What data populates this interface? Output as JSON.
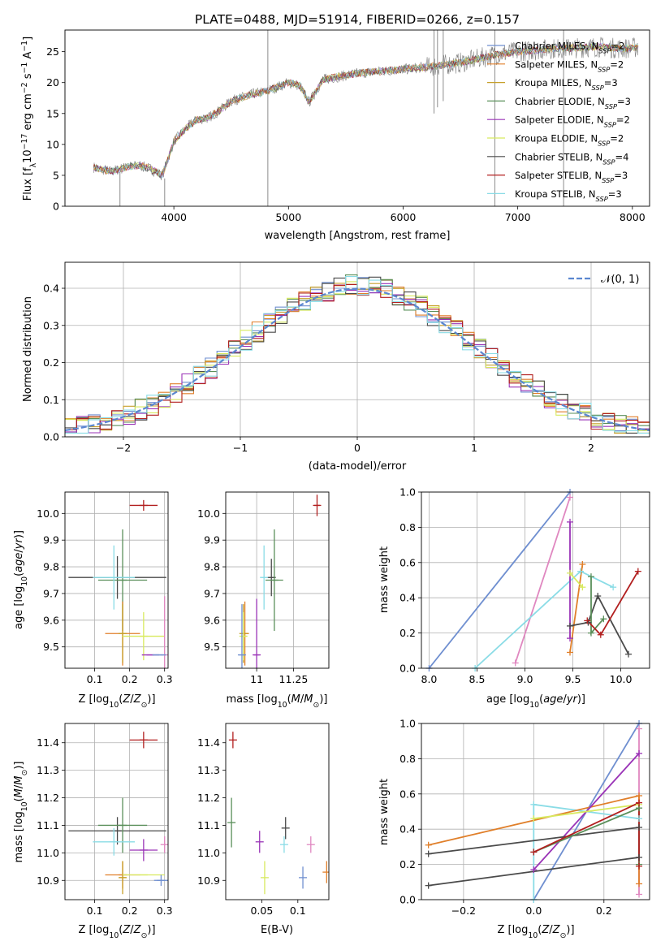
{
  "chart_data": [
    {
      "id": "spectrum",
      "type": "line",
      "title": "PLATE=0488, MJD=51914, FIBERID=0266, z=0.157",
      "xlabel": "wavelength [Angstrom, rest frame]",
      "ylabel": "Flux [f_λ 10⁻¹⁷ erg cm⁻² s⁻¹ A⁻¹]",
      "xlim": [
        3050,
        8150
      ],
      "ylim": [
        0,
        28.5
      ],
      "xticks": [
        4000,
        5000,
        6000,
        7000,
        8000
      ],
      "yticks": [
        0,
        5,
        10,
        15,
        20,
        25
      ],
      "legend_position": "upper right",
      "series": [
        {
          "name": "Chabrier MILES, N_SSP=2",
          "color": "#6f8fd0"
        },
        {
          "name": "Salpeter MILES, N_SSP=2",
          "color": "#e07f2a"
        },
        {
          "name": "Kroupa MILES, N_SSP=3",
          "color": "#c7a02b"
        },
        {
          "name": "Chabrier ELODIE, N_SSP=3",
          "color": "#5a8f5a"
        },
        {
          "name": "Salpeter ELODIE, N_SSP=2",
          "color": "#9a33b7"
        },
        {
          "name": "Kroupa ELODIE, N_SSP=2",
          "color": "#d8ea5e"
        },
        {
          "name": "Chabrier STELIB, N_SSP=4",
          "color": "#4a4a4a"
        },
        {
          "name": "Salpeter STELIB, N_SSP=3",
          "color": "#b21f1f"
        },
        {
          "name": "Kroupa STELIB, N_SSP=3",
          "color": "#8adce6"
        }
      ],
      "continuum": [
        [
          3300,
          6.3
        ],
        [
          3450,
          5.6
        ],
        [
          3600,
          6.4
        ],
        [
          3700,
          6.6
        ],
        [
          3800,
          6.0
        ],
        [
          3900,
          5.0
        ],
        [
          4000,
          10.5
        ],
        [
          4100,
          12.5
        ],
        [
          4200,
          14.0
        ],
        [
          4300,
          14.3
        ],
        [
          4400,
          15.5
        ],
        [
          4500,
          17.0
        ],
        [
          4700,
          18.2
        ],
        [
          4800,
          18.5
        ],
        [
          5000,
          20.0
        ],
        [
          5100,
          19.5
        ],
        [
          5180,
          16.8
        ],
        [
          5300,
          20.5
        ],
        [
          5600,
          21.5
        ],
        [
          5900,
          22.0
        ],
        [
          6200,
          22.5
        ],
        [
          6500,
          23.2
        ],
        [
          6800,
          24.5
        ],
        [
          7000,
          25.0
        ],
        [
          7300,
          25.5
        ],
        [
          7500,
          25.6
        ],
        [
          7700,
          25.8
        ],
        [
          7900,
          25.5
        ],
        [
          8050,
          25.7
        ]
      ],
      "spikes": [
        {
          "x": 3530,
          "y0": 0,
          "y1": 5.5
        },
        {
          "x": 3920,
          "y0": 0,
          "y1": 4.5
        },
        {
          "x": 4820,
          "y0": 0,
          "y1": 28.5
        },
        {
          "x": 6800,
          "y0": 0,
          "y1": 28.5
        },
        {
          "x": 7400,
          "y0": 0,
          "y1": 28.5
        },
        {
          "x": 6270,
          "y0": 15,
          "y1": 28.5
        },
        {
          "x": 6350,
          "y0": 17,
          "y1": 28.5
        },
        {
          "x": 6300,
          "y0": 16,
          "y1": 28.5
        }
      ]
    },
    {
      "id": "residuals",
      "type": "line",
      "xlabel": "(data-model)/error",
      "ylabel": "Normed distribution",
      "xlim": [
        -2.5,
        2.5
      ],
      "ylim": [
        0,
        0.47
      ],
      "xticks": [
        -2,
        -1,
        0,
        1,
        2
      ],
      "yticks": [
        0.0,
        0.1,
        0.2,
        0.3,
        0.4
      ],
      "grid": true,
      "legend_position": "upper right",
      "reference_curve": {
        "name": "𝒩(0, 1)",
        "mean": 0,
        "sigma": 1,
        "color": "#5b87d0"
      },
      "bin_width": 0.1
    },
    {
      "id": "age_vs_Z",
      "type": "scatter",
      "xlabel": "Z [log10(Z/Z⊙)]",
      "ylabel": "age  [log10(age/yr)]",
      "xlim": [
        0.015,
        0.31
      ],
      "ylim": [
        9.42,
        10.08
      ],
      "xticks": [
        0.1,
        0.2,
        0.3
      ],
      "yticks": [
        9.5,
        9.6,
        9.7,
        9.8,
        9.9,
        10.0
      ],
      "grid": true,
      "points": [
        {
          "x": 0.24,
          "y": 10.03,
          "xerr": 0.04,
          "yerr": 0.02,
          "color": "#b21f1f"
        },
        {
          "x": 0.165,
          "y": 9.76,
          "xerr": 0.14,
          "yerr": 0.08,
          "color": "#4a4a4a"
        },
        {
          "x": 0.18,
          "y": 9.75,
          "xerr": 0.07,
          "yerr": 0.19,
          "color": "#5a8f5a"
        },
        {
          "x": 0.155,
          "y": 9.76,
          "xerr": 0.06,
          "yerr": 0.12,
          "color": "#8adce6"
        },
        {
          "x": 0.18,
          "y": 9.55,
          "xerr": 0.05,
          "yerr": 0.12,
          "color": "#e07f2a"
        },
        {
          "x": 0.18,
          "y": 9.55,
          "xerr": 0.01,
          "yerr": 0.11,
          "color": "#c7a02b"
        },
        {
          "x": 0.24,
          "y": 9.54,
          "xerr": 0.06,
          "yerr": 0.09,
          "color": "#d8ea5e"
        },
        {
          "x": 0.26,
          "y": 9.47,
          "xerr": 0.025,
          "yerr": 0.0,
          "color": "#9a33b7"
        },
        {
          "x": 0.3,
          "y": 9.47,
          "xerr": 0.0,
          "yerr": 0.22,
          "color": "#e087c0"
        },
        {
          "x": 0.285,
          "y": 9.47,
          "xerr": 0.02,
          "yerr": 0.0,
          "color": "#6f8fd0"
        }
      ]
    },
    {
      "id": "age_vs_mass",
      "type": "scatter",
      "xlabel": "mass [log10(M/M⊙)]",
      "ylabel": "",
      "xlim": [
        10.79,
        11.49
      ],
      "ylim": [
        9.42,
        10.08
      ],
      "xticks": [
        11.0,
        11.25
      ],
      "yticks": [
        9.5,
        9.6,
        9.7,
        9.8,
        9.9,
        10.0
      ],
      "grid": true,
      "points": [
        {
          "x": 11.41,
          "y": 10.03,
          "xerr": 0.02,
          "yerr": 0.04,
          "color": "#b21f1f"
        },
        {
          "x": 11.1,
          "y": 9.76,
          "xerr": 0.03,
          "yerr": 0.07,
          "color": "#4a4a4a"
        },
        {
          "x": 11.12,
          "y": 9.75,
          "xerr": 0.06,
          "yerr": 0.19,
          "color": "#5a8f5a"
        },
        {
          "x": 11.05,
          "y": 9.76,
          "xerr": 0.02,
          "yerr": 0.12,
          "color": "#8adce6"
        },
        {
          "x": 10.92,
          "y": 9.55,
          "xerr": 0.02,
          "yerr": 0.12,
          "color": "#e07f2a"
        },
        {
          "x": 10.91,
          "y": 9.55,
          "xerr": 0.0,
          "yerr": 0.11,
          "color": "#c7a02b"
        },
        {
          "x": 10.91,
          "y": 9.54,
          "xerr": 0.02,
          "yerr": 0.09,
          "color": "#d8ea5e"
        },
        {
          "x": 11.0,
          "y": 9.47,
          "xerr": 0.02,
          "yerr": 0.21,
          "color": "#9a33b7"
        },
        {
          "x": 10.9,
          "y": 9.47,
          "xerr": 0.02,
          "yerr": 0.19,
          "color": "#6f8fd0"
        }
      ]
    },
    {
      "id": "weight_vs_age",
      "type": "line",
      "xlabel": "age  [log10(age/yr)]",
      "ylabel": "mass weight",
      "xlim": [
        7.92,
        10.3
      ],
      "ylim": [
        0,
        1
      ],
      "xticks": [
        8.0,
        8.5,
        9.0,
        9.5,
        10.0
      ],
      "yticks": [
        0.0,
        0.2,
        0.4,
        0.6,
        0.8,
        1.0
      ],
      "grid": true,
      "series": [
        {
          "color": "#6f8fd0",
          "points": [
            [
              8.0,
              0.0
            ],
            [
              9.47,
              1.0
            ]
          ]
        },
        {
          "color": "#e087c0",
          "points": [
            [
              8.9,
              0.03
            ],
            [
              9.47,
              0.97
            ]
          ]
        },
        {
          "color": "#8adce6",
          "points": [
            [
              8.48,
              0.0
            ],
            [
              9.58,
              0.55
            ],
            [
              9.92,
              0.46
            ]
          ]
        },
        {
          "color": "#e07f2a",
          "points": [
            [
              9.47,
              0.09
            ],
            [
              9.6,
              0.59
            ]
          ]
        },
        {
          "color": "#9a33b7",
          "points": [
            [
              9.47,
              0.17
            ],
            [
              9.47,
              0.83
            ]
          ]
        },
        {
          "color": "#d8ea5e",
          "points": [
            [
              9.47,
              0.54
            ],
            [
              9.6,
              0.46
            ]
          ]
        },
        {
          "color": "#4a4a4a",
          "points": [
            [
              9.47,
              0.24
            ],
            [
              9.66,
              0.26
            ],
            [
              9.76,
              0.41
            ],
            [
              10.08,
              0.08
            ]
          ]
        },
        {
          "color": "#5a8f5a",
          "points": [
            [
              9.69,
              0.52
            ],
            [
              9.69,
              0.2
            ],
            [
              9.82,
              0.28
            ]
          ]
        },
        {
          "color": "#b21f1f",
          "points": [
            [
              9.65,
              0.27
            ],
            [
              9.79,
              0.19
            ],
            [
              10.18,
              0.55
            ]
          ]
        }
      ]
    },
    {
      "id": "mass_vs_Z",
      "type": "scatter",
      "xlabel": "Z [log10(Z/Z⊙)]",
      "ylabel": "mass [log10(M/M⊙)]",
      "xlim": [
        0.015,
        0.31
      ],
      "ylim": [
        10.83,
        11.47
      ],
      "xticks": [
        0.1,
        0.2,
        0.3
      ],
      "yticks": [
        10.9,
        11.0,
        11.1,
        11.2,
        11.3,
        11.4
      ],
      "grid": true,
      "points": [
        {
          "x": 0.24,
          "y": 11.41,
          "xerr": 0.04,
          "yerr": 0.03,
          "color": "#b21f1f"
        },
        {
          "x": 0.165,
          "y": 11.08,
          "xerr": 0.14,
          "yerr": 0.05,
          "color": "#4a4a4a"
        },
        {
          "x": 0.18,
          "y": 11.1,
          "xerr": 0.07,
          "yerr": 0.1,
          "color": "#5a8f5a"
        },
        {
          "x": 0.155,
          "y": 11.04,
          "xerr": 0.06,
          "yerr": 0.05,
          "color": "#8adce6"
        },
        {
          "x": 0.24,
          "y": 11.01,
          "xerr": 0.04,
          "yerr": 0.04,
          "color": "#9a33b7"
        },
        {
          "x": 0.18,
          "y": 10.92,
          "xerr": 0.05,
          "yerr": 0.05,
          "color": "#e07f2a"
        },
        {
          "x": 0.18,
          "y": 10.91,
          "xerr": 0.01,
          "yerr": 0.06,
          "color": "#c7a02b"
        },
        {
          "x": 0.24,
          "y": 10.92,
          "xerr": 0.06,
          "yerr": 0.0,
          "color": "#d8ea5e"
        },
        {
          "x": 0.29,
          "y": 10.9,
          "xerr": 0.02,
          "yerr": 0.02,
          "color": "#6f8fd0"
        },
        {
          "x": 0.3,
          "y": 11.03,
          "xerr": 0.0,
          "yerr": 0.03,
          "color": "#e087c0"
        }
      ]
    },
    {
      "id": "mass_vs_EBV",
      "type": "scatter",
      "xlabel": "E(B-V)",
      "ylabel": "",
      "xlim": [
        0.0,
        0.143
      ],
      "ylim": [
        10.83,
        11.47
      ],
      "xticks": [
        0.05,
        0.1
      ],
      "yticks": [
        10.9,
        11.0,
        11.1,
        11.2,
        11.3,
        11.4
      ],
      "grid": false,
      "points": [
        {
          "x": 0.01,
          "y": 11.41,
          "yerr": 0.03,
          "color": "#b21f1f"
        },
        {
          "x": 0.008,
          "y": 11.11,
          "yerr": 0.09,
          "color": "#5a8f5a"
        },
        {
          "x": 0.047,
          "y": 11.04,
          "yerr": 0.04,
          "color": "#9a33b7"
        },
        {
          "x": 0.054,
          "y": 10.91,
          "yerr": 0.06,
          "color": "#d8ea5e"
        },
        {
          "x": 0.083,
          "y": 11.09,
          "yerr": 0.04,
          "color": "#4a4a4a"
        },
        {
          "x": 0.081,
          "y": 11.03,
          "yerr": 0.03,
          "color": "#8adce6"
        },
        {
          "x": 0.107,
          "y": 10.91,
          "yerr": 0.04,
          "color": "#6f8fd0"
        },
        {
          "x": 0.118,
          "y": 11.03,
          "yerr": 0.03,
          "color": "#e087c0"
        },
        {
          "x": 0.14,
          "y": 10.93,
          "yerr": 0.04,
          "color": "#e07f2a"
        }
      ]
    },
    {
      "id": "weight_vs_Z",
      "type": "line",
      "xlabel": "Z [log10(Z/Z⊙)]",
      "ylabel": "mass weight",
      "xlim": [
        -0.32,
        0.33
      ],
      "ylim": [
        0,
        1
      ],
      "xticks": [
        -0.2,
        0.0,
        0.2
      ],
      "yticks": [
        0.0,
        0.2,
        0.4,
        0.6,
        0.8,
        1.0
      ],
      "grid": true,
      "series": [
        {
          "color": "#6f8fd0",
          "points": [
            [
              0.0,
              0.0
            ],
            [
              0.3,
              1.0
            ]
          ]
        },
        {
          "color": "#e087c0",
          "points": [
            [
              0.3,
              0.03
            ],
            [
              0.3,
              0.97
            ]
          ]
        },
        {
          "color": "#8adce6",
          "points": [
            [
              0.0,
              0.0
            ],
            [
              0.0,
              0.54
            ],
            [
              0.3,
              0.46
            ]
          ]
        },
        {
          "color": "#e07f2a",
          "points": [
            [
              -0.3,
              0.31
            ],
            [
              0.3,
              0.59
            ],
            [
              0.3,
              0.09
            ]
          ]
        },
        {
          "color": "#9a33b7",
          "points": [
            [
              0.0,
              0.17
            ],
            [
              0.3,
              0.83
            ]
          ]
        },
        {
          "color": "#d8ea5e",
          "points": [
            [
              0.0,
              0.46
            ],
            [
              0.3,
              0.54
            ]
          ]
        },
        {
          "color": "#4a4a4a",
          "points": [
            [
              -0.3,
              0.08
            ],
            [
              0.3,
              0.24
            ],
            [
              0.3,
              0.41
            ],
            [
              -0.3,
              0.26
            ]
          ]
        },
        {
          "color": "#5a8f5a",
          "points": [
            [
              0.0,
              0.27
            ],
            [
              0.3,
              0.52
            ],
            [
              0.3,
              0.2
            ]
          ]
        },
        {
          "color": "#b21f1f",
          "points": [
            [
              0.0,
              0.27
            ],
            [
              0.3,
              0.55
            ],
            [
              0.3,
              0.19
            ]
          ]
        }
      ]
    }
  ]
}
